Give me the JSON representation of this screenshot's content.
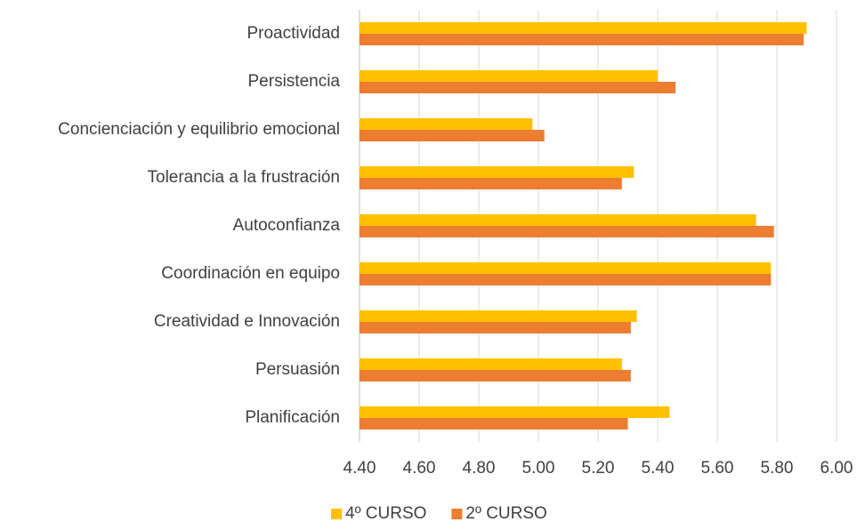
{
  "chart_data": {
    "type": "bar",
    "categories": [
      "Proactividad",
      "Persistencia",
      "Concienciación y equilibrio emocional",
      "Tolerancia a la frustración",
      "Autoconfianza",
      "Coordinación en equipo",
      "Creatividad e Innovación",
      "Persuasión",
      "Planificación"
    ],
    "series": [
      {
        "name": "4º CURSO",
        "color": "#ffc000",
        "values": [
          5.9,
          5.4,
          4.98,
          5.32,
          5.73,
          5.78,
          5.33,
          5.28,
          5.44
        ]
      },
      {
        "name": "2º CURSO",
        "color": "#ed7d31",
        "values": [
          5.89,
          5.46,
          5.02,
          5.28,
          5.79,
          5.78,
          5.31,
          5.31,
          5.3
        ]
      }
    ],
    "xlim": [
      4.4,
      6.0
    ],
    "xticks": [
      {
        "value": 4.4,
        "label": "4.40"
      },
      {
        "value": 4.6,
        "label": "4.60"
      },
      {
        "value": 4.8,
        "label": "4.80"
      },
      {
        "value": 5.0,
        "label": "5.00"
      },
      {
        "value": 5.2,
        "label": "5.20"
      },
      {
        "value": 5.4,
        "label": "5.40"
      },
      {
        "value": 5.6,
        "label": "5.60"
      },
      {
        "value": 5.8,
        "label": "5.80"
      },
      {
        "value": 6.0,
        "label": "6.00"
      }
    ],
    "grid": true,
    "legend": "bottom"
  }
}
